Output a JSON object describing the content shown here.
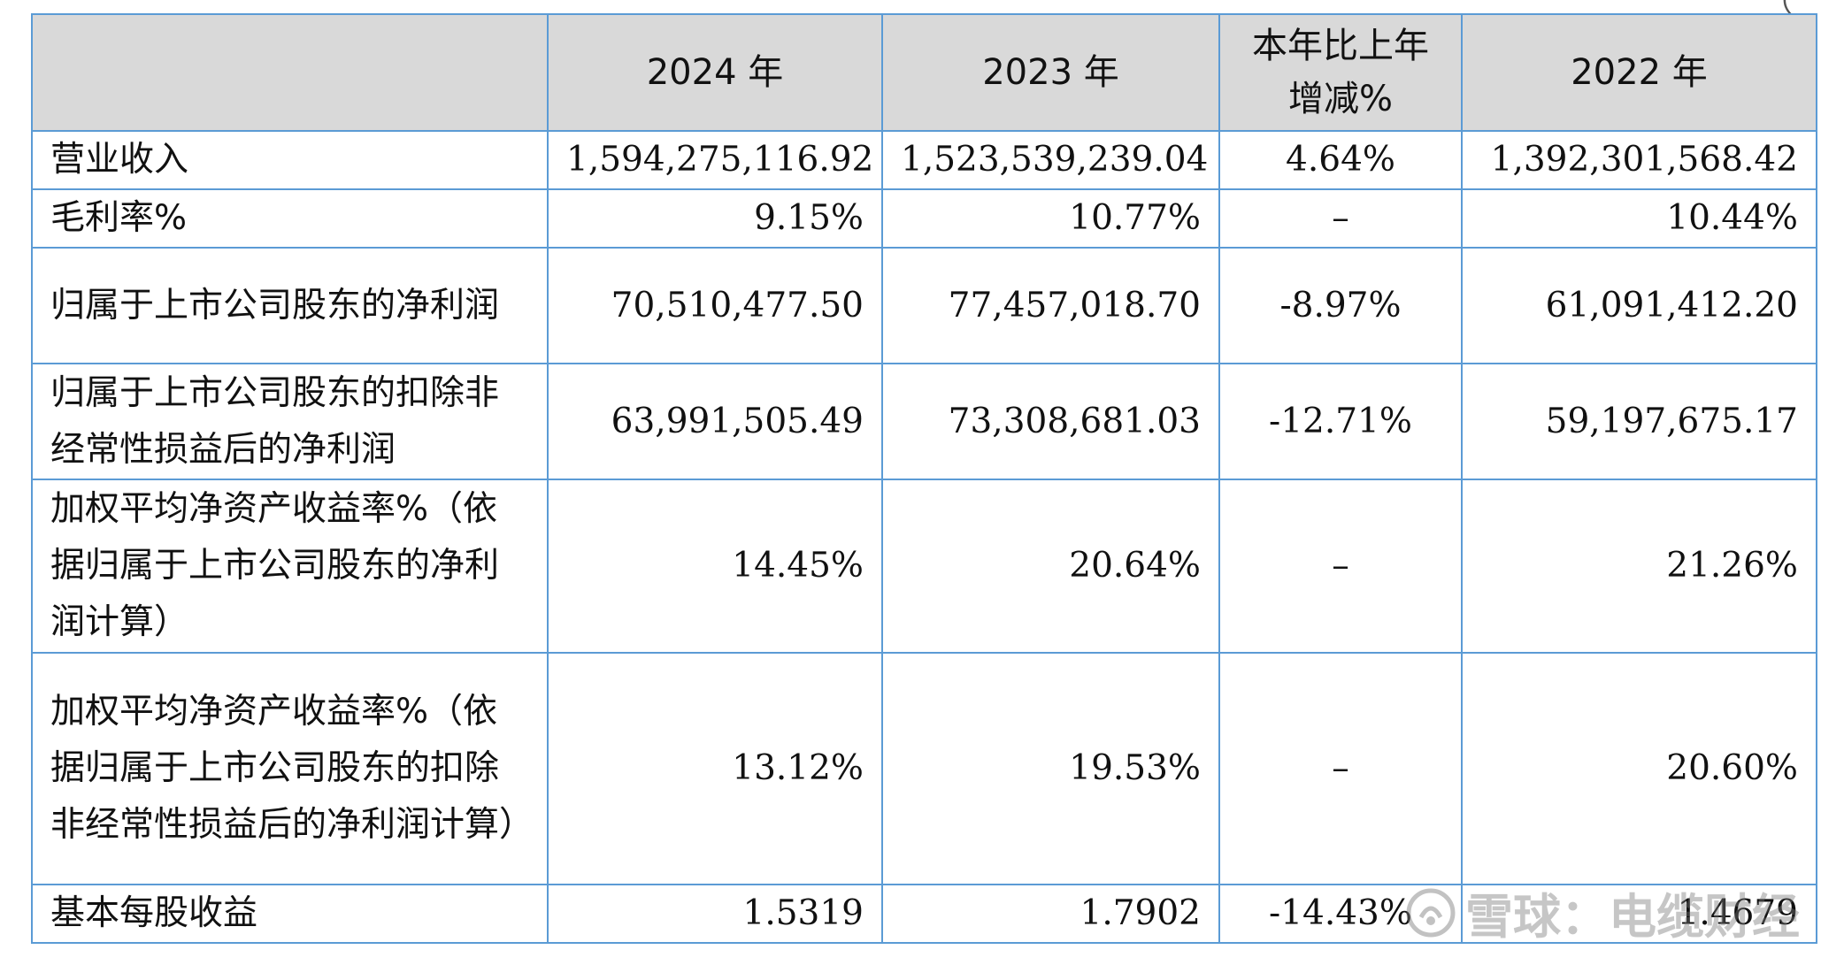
{
  "table": {
    "headers": [
      "",
      "2024 年",
      "2023 年",
      "本年比上年增减%",
      "2022 年"
    ],
    "rows": [
      {
        "label": "营业收入",
        "y2024": "1,594,275,116.92",
        "y2023": "1,523,539,239.04",
        "change": "4.64%",
        "y2022": "1,392,301,568.42"
      },
      {
        "label": "毛利率%",
        "y2024": "9.15%",
        "y2023": "10.77%",
        "change": "–",
        "y2022": "10.44%"
      },
      {
        "label": "归属于上市公司股东的净利润",
        "y2024": "70,510,477.50",
        "y2023": "77,457,018.70",
        "change": "-8.97%",
        "y2022": "61,091,412.20"
      },
      {
        "label": "归属于上市公司股东的扣除非经常性损益后的净利润",
        "y2024": "63,991,505.49",
        "y2023": "73,308,681.03",
        "change": "-12.71%",
        "y2022": "59,197,675.17"
      },
      {
        "label": "加权平均净资产收益率%（依据归属于上市公司股东的净利润计算）",
        "y2024": "14.45%",
        "y2023": "20.64%",
        "change": "–",
        "y2022": "21.26%"
      },
      {
        "label": "加权平均净资产收益率%（依据归属于上市公司股东的扣除非经常性损益后的净利润计算）",
        "y2024": "13.12%",
        "y2023": "19.53%",
        "change": "–",
        "y2022": "20.60%"
      },
      {
        "label": "基本每股收益",
        "y2024": "1.5319",
        "y2023": "1.7902",
        "change": "-14.43%",
        "y2022": "1.4679"
      }
    ]
  },
  "watermark": {
    "text": "雪球：电缆财经",
    "icon": "snowball-logo-icon"
  },
  "corner_mark": "（"
}
